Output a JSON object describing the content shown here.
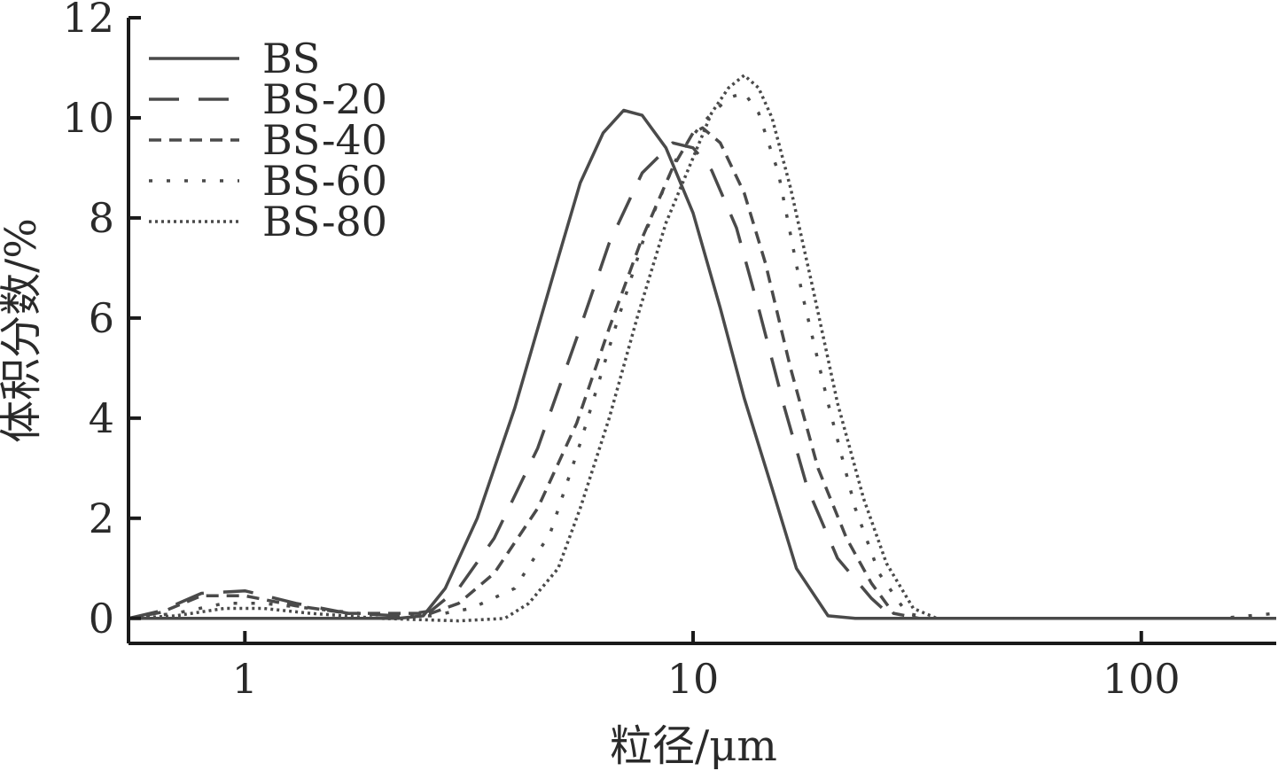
{
  "chart_data": {
    "type": "line",
    "xlabel": "粒径/μm",
    "ylabel": "体积分数/%",
    "x_scale": "log",
    "xlim": [
      0.55,
      200
    ],
    "ylim": [
      -0.5,
      12
    ],
    "x_ticks": [
      {
        "value": 1,
        "label": "1"
      },
      {
        "value": 10,
        "label": "10"
      },
      {
        "value": 100,
        "label": "100"
      }
    ],
    "y_ticks": [
      {
        "value": 0,
        "label": "0"
      },
      {
        "value": 2,
        "label": "2"
      },
      {
        "value": 4,
        "label": "4"
      },
      {
        "value": 6,
        "label": "6"
      },
      {
        "value": 8,
        "label": "8"
      },
      {
        "value": 10,
        "label": "10"
      },
      {
        "value": 12,
        "label": "12"
      }
    ],
    "legend_position": "top-left",
    "series": [
      {
        "name": "BS",
        "dash": "",
        "points": [
          [
            0.55,
            0
          ],
          [
            1,
            0
          ],
          [
            2.2,
            0
          ],
          [
            2.5,
            0.05
          ],
          [
            2.8,
            0.6
          ],
          [
            3.3,
            2.0
          ],
          [
            4,
            4.2
          ],
          [
            5,
            7.2
          ],
          [
            5.6,
            8.7
          ],
          [
            6.3,
            9.7
          ],
          [
            7,
            10.15
          ],
          [
            7.7,
            10.05
          ],
          [
            8.7,
            9.4
          ],
          [
            10,
            8.1
          ],
          [
            11.5,
            6.2
          ],
          [
            13,
            4.4
          ],
          [
            15,
            2.6
          ],
          [
            17,
            1.0
          ],
          [
            20,
            0.05
          ],
          [
            23,
            0
          ],
          [
            200,
            0
          ]
        ]
      },
      {
        "name": "BS-20",
        "dash": "34 22",
        "points": [
          [
            0.55,
            0
          ],
          [
            0.65,
            0.15
          ],
          [
            0.8,
            0.5
          ],
          [
            1,
            0.55
          ],
          [
            1.3,
            0.3
          ],
          [
            1.7,
            0.1
          ],
          [
            2.2,
            0.05
          ],
          [
            2.6,
            0.15
          ],
          [
            3,
            0.6
          ],
          [
            3.6,
            1.6
          ],
          [
            4.5,
            3.4
          ],
          [
            5.5,
            5.6
          ],
          [
            6.5,
            7.5
          ],
          [
            7.7,
            8.9
          ],
          [
            9,
            9.5
          ],
          [
            10,
            9.4
          ],
          [
            11,
            8.95
          ],
          [
            12.5,
            7.8
          ],
          [
            14,
            6.2
          ],
          [
            16,
            4.2
          ],
          [
            18,
            2.6
          ],
          [
            21,
            1.2
          ],
          [
            25,
            0.4
          ],
          [
            28,
            0
          ],
          [
            200,
            0
          ]
        ]
      },
      {
        "name": "BS-40",
        "dash": "14 9",
        "points": [
          [
            0.55,
            0
          ],
          [
            0.65,
            0.12
          ],
          [
            0.8,
            0.45
          ],
          [
            1,
            0.45
          ],
          [
            1.3,
            0.25
          ],
          [
            1.7,
            0.1
          ],
          [
            2.2,
            0.1
          ],
          [
            2.6,
            0.1
          ],
          [
            3,
            0.3
          ],
          [
            3.6,
            0.9
          ],
          [
            4.5,
            2.2
          ],
          [
            5.5,
            3.9
          ],
          [
            6.5,
            5.8
          ],
          [
            7.7,
            7.6
          ],
          [
            9,
            9.0
          ],
          [
            10,
            9.7
          ],
          [
            10.5,
            9.8
          ],
          [
            11.5,
            9.5
          ],
          [
            13,
            8.5
          ],
          [
            14.5,
            7.1
          ],
          [
            16.5,
            5.0
          ],
          [
            19,
            3.0
          ],
          [
            22,
            1.6
          ],
          [
            25,
            0.7
          ],
          [
            28,
            0.1
          ],
          [
            32,
            0
          ],
          [
            200,
            0
          ]
        ]
      },
      {
        "name": "BS-60",
        "dash": "4 16",
        "points": [
          [
            0.55,
            0
          ],
          [
            0.7,
            0.1
          ],
          [
            0.9,
            0.3
          ],
          [
            1.1,
            0.3
          ],
          [
            1.4,
            0.2
          ],
          [
            1.8,
            0.1
          ],
          [
            2.2,
            0.05
          ],
          [
            2.6,
            0.05
          ],
          [
            3.2,
            0.2
          ],
          [
            4,
            0.6
          ],
          [
            4.8,
            1.7
          ],
          [
            5.6,
            3.5
          ],
          [
            6.7,
            5.8
          ],
          [
            7.9,
            7.8
          ],
          [
            9.2,
            9.2
          ],
          [
            10.5,
            9.9
          ],
          [
            12,
            10.4
          ],
          [
            13,
            10.5
          ],
          [
            14,
            10.1
          ],
          [
            15.5,
            8.9
          ],
          [
            17.5,
            6.5
          ],
          [
            20,
            4.3
          ],
          [
            23,
            2.2
          ],
          [
            26,
            0.9
          ],
          [
            30,
            0.1
          ],
          [
            34,
            0
          ],
          [
            150,
            0
          ],
          [
            200,
            0.1
          ]
        ]
      },
      {
        "name": "BS-80",
        "dash": "3 4",
        "points": [
          [
            0.55,
            0
          ],
          [
            0.7,
            0.05
          ],
          [
            0.9,
            0.2
          ],
          [
            1.1,
            0.2
          ],
          [
            1.4,
            0.1
          ],
          [
            2,
            0
          ],
          [
            3,
            -0.05
          ],
          [
            3.8,
            0
          ],
          [
            4.3,
            0.3
          ],
          [
            5,
            1.0
          ],
          [
            5.6,
            2.2
          ],
          [
            6.5,
            4.0
          ],
          [
            7.5,
            6.0
          ],
          [
            8.7,
            7.9
          ],
          [
            10,
            9.2
          ],
          [
            11,
            10.1
          ],
          [
            12,
            10.6
          ],
          [
            13,
            10.85
          ],
          [
            14,
            10.6
          ],
          [
            15,
            10.0
          ],
          [
            16.5,
            8.6
          ],
          [
            18.5,
            6.6
          ],
          [
            21,
            4.3
          ],
          [
            24,
            2.4
          ],
          [
            27,
            1.1
          ],
          [
            31,
            0.2
          ],
          [
            35,
            0
          ],
          [
            200,
            0
          ]
        ]
      }
    ]
  }
}
